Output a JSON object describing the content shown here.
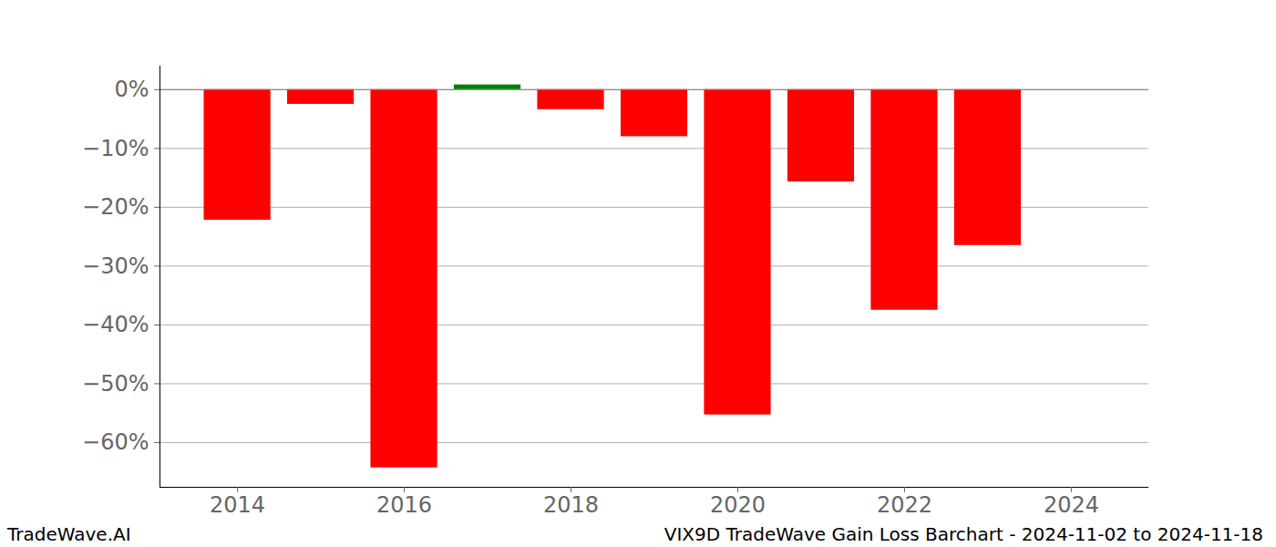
{
  "chart_data": {
    "type": "bar",
    "title": "VIX9D TradeWave Gain Loss Barchart - 2024-11-02 to 2024-11-18",
    "caption": "TradeWave.AI",
    "x": [
      2014,
      2015,
      2016,
      2017,
      2018,
      2019,
      2020,
      2021,
      2022,
      2023
    ],
    "values": [
      -22.2,
      -2.5,
      -64.3,
      0.8,
      -3.4,
      -8.0,
      -55.3,
      -15.7,
      -37.5,
      -26.5
    ],
    "colors": [
      "#ff0000",
      "#ff0000",
      "#ff0000",
      "#008000",
      "#ff0000",
      "#ff0000",
      "#ff0000",
      "#ff0000",
      "#ff0000",
      "#ff0000"
    ],
    "xlim": [
      2013.07,
      2024.93
    ],
    "xticks": [
      2014,
      2016,
      2018,
      2020,
      2022,
      2024
    ],
    "ylim": [
      -67.6,
      4.0
    ],
    "yticks": [
      {
        "value": 0,
        "label": "0%"
      },
      {
        "value": -10,
        "label": "−10%"
      },
      {
        "value": -20,
        "label": "−20%"
      },
      {
        "value": -30,
        "label": "−30%"
      },
      {
        "value": -40,
        "label": "−40%"
      },
      {
        "value": -50,
        "label": "−50%"
      },
      {
        "value": -60,
        "label": "−60%"
      }
    ],
    "grid": true
  }
}
